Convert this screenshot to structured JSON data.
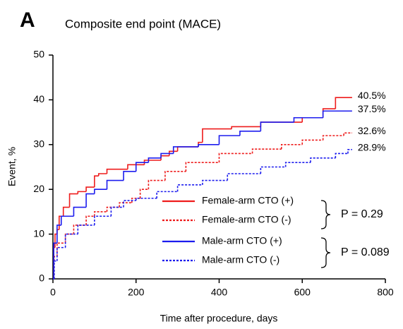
{
  "chart_data": {
    "type": "step",
    "panel_label": "A",
    "title": "Composite end point (MACE)",
    "x_label": "Time after procedure, days",
    "y_label": "Event, %",
    "xlim": [
      0,
      800
    ],
    "xticks": [
      0,
      200,
      400,
      600,
      800
    ],
    "ylim": [
      0,
      50
    ],
    "yticks": [
      0,
      10,
      20,
      30,
      40,
      50
    ],
    "series": [
      {
        "name": "Female-arm CTO (+)",
        "color": "#ee1c1c",
        "dash": false,
        "x": [
          0,
          2,
          5,
          10,
          15,
          25,
          40,
          60,
          80,
          100,
          110,
          130,
          180,
          220,
          260,
          280,
          300,
          350,
          360,
          430,
          500,
          600,
          650,
          680,
          720
        ],
        "values": [
          0,
          7,
          10,
          11,
          14,
          16,
          19,
          19.5,
          20.5,
          23,
          23.5,
          24.5,
          25.5,
          26.5,
          27.5,
          28.5,
          29.5,
          30.5,
          33.5,
          34,
          35,
          36,
          38,
          40.5,
          40.5
        ],
        "value_labels": [
          null,
          null,
          null,
          null,
          null,
          null,
          null,
          null,
          null,
          null,
          null,
          null,
          null,
          null,
          null,
          null,
          null,
          null,
          null,
          null,
          null,
          null,
          null,
          null,
          "40.5%"
        ]
      },
      {
        "name": "Female-arm CTO (-)",
        "color": "#ee1c1c",
        "dash": true,
        "x": [
          0,
          3,
          10,
          30,
          50,
          80,
          100,
          130,
          160,
          190,
          210,
          230,
          270,
          320,
          400,
          480,
          550,
          600,
          650,
          700,
          720
        ],
        "values": [
          0,
          5,
          8,
          10,
          12,
          14,
          15,
          16,
          17,
          18,
          20,
          22,
          24,
          26,
          28,
          29,
          30,
          31,
          32,
          32.6,
          32.6
        ],
        "value_labels": [
          null,
          null,
          null,
          null,
          null,
          null,
          null,
          null,
          null,
          null,
          null,
          null,
          null,
          null,
          null,
          null,
          null,
          null,
          null,
          null,
          "32.6%"
        ]
      },
      {
        "name": "Male-arm CTO (+)",
        "color": "#1c1cee",
        "dash": false,
        "x": [
          0,
          2,
          10,
          20,
          50,
          80,
          100,
          130,
          170,
          200,
          230,
          260,
          290,
          350,
          400,
          450,
          500,
          580,
          650,
          720
        ],
        "values": [
          0,
          8,
          12,
          14,
          16,
          19,
          20,
          22,
          24,
          26,
          27,
          28,
          29.5,
          30,
          32,
          33,
          35,
          36,
          37.5,
          37.5
        ],
        "value_labels": [
          null,
          null,
          null,
          null,
          null,
          null,
          null,
          null,
          null,
          null,
          null,
          null,
          null,
          null,
          null,
          null,
          null,
          null,
          null,
          "37.5%"
        ]
      },
      {
        "name": "Male-arm CTO (-)",
        "color": "#1c1cee",
        "dash": true,
        "x": [
          0,
          3,
          10,
          30,
          60,
          100,
          140,
          170,
          200,
          250,
          300,
          360,
          420,
          500,
          560,
          620,
          680,
          710,
          720
        ],
        "values": [
          0,
          4,
          7,
          10,
          12,
          14,
          16,
          17.5,
          18,
          19.5,
          21,
          22,
          23.5,
          25,
          26,
          27,
          28,
          28.9,
          28.9
        ],
        "value_labels": [
          null,
          null,
          null,
          null,
          null,
          null,
          null,
          null,
          null,
          null,
          null,
          null,
          null,
          null,
          null,
          null,
          null,
          null,
          "28.9%"
        ]
      }
    ],
    "annotations": [
      "P = 0.29",
      "P = 0.089"
    ]
  }
}
